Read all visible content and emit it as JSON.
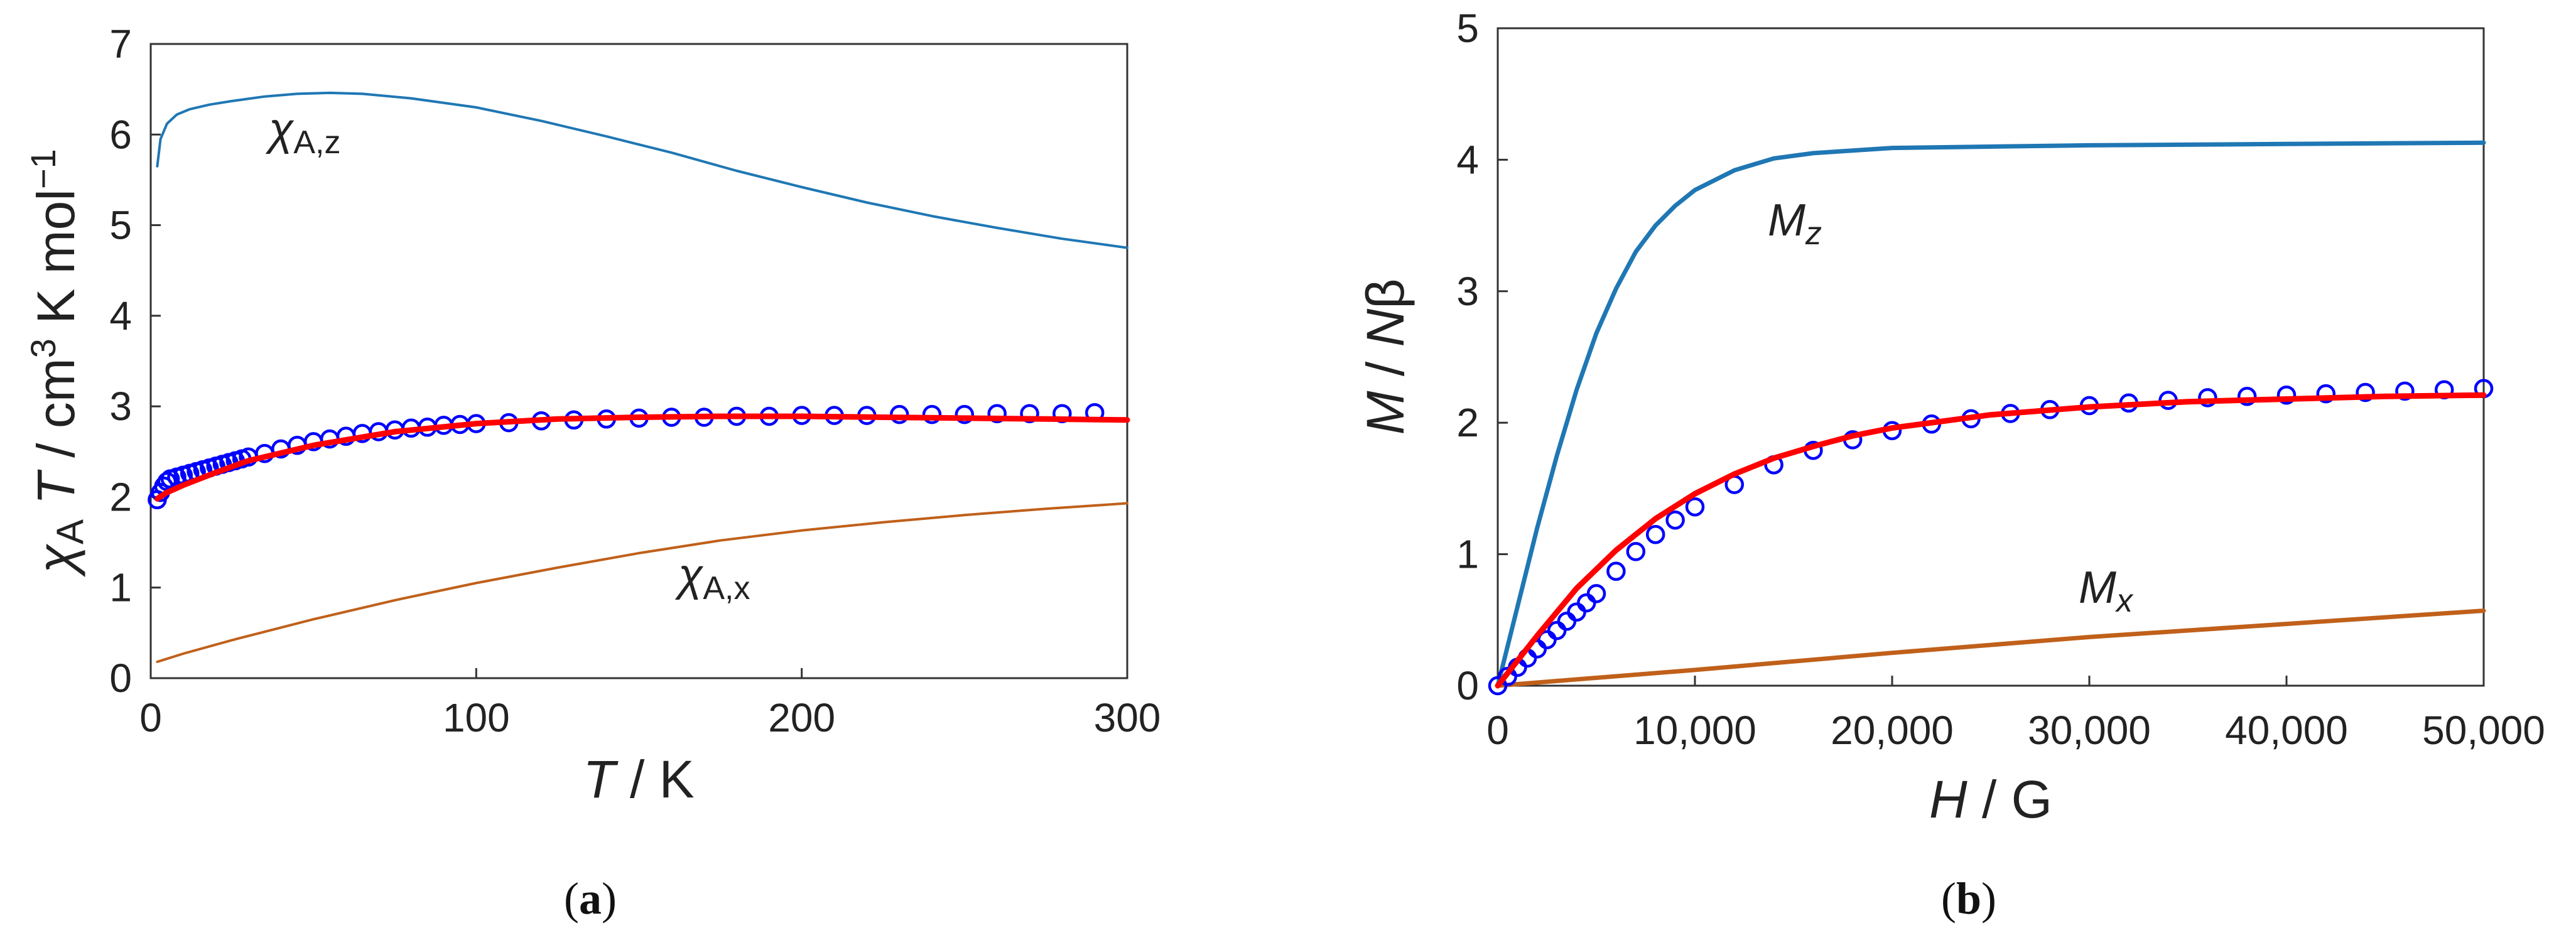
{
  "panels": {
    "a": {
      "caption_open": "(",
      "caption_letter": "a",
      "caption_close": ")"
    },
    "b": {
      "caption_open": "(",
      "caption_letter": "b",
      "caption_close": ")"
    }
  },
  "chart_data": [
    {
      "type": "line",
      "panel": "a",
      "xlabel": {
        "var": "T",
        "unit": " / K"
      },
      "ylabel": {
        "var1": "χ",
        "sub1": "A",
        "var2": " T",
        "unit1": " / cm",
        "sup1": "3",
        "unit2": " K mol",
        "sup2": "−1"
      },
      "xlim": [
        0,
        300
      ],
      "ylim": [
        0,
        7
      ],
      "xticks": [
        "0",
        "100",
        "200",
        "300"
      ],
      "yticks": [
        "0",
        "1",
        "2",
        "3",
        "4",
        "5",
        "6",
        "7"
      ],
      "series": [
        {
          "name": "χA,z",
          "label_var": "χ",
          "label_sub": "A,z",
          "style": "line",
          "color": "#1f77b4",
          "x": [
            2,
            3,
            5,
            8,
            12,
            18,
            25,
            35,
            45,
            55,
            65,
            80,
            100,
            120,
            140,
            160,
            180,
            200,
            220,
            240,
            260,
            280,
            300
          ],
          "y": [
            5.65,
            5.95,
            6.12,
            6.22,
            6.28,
            6.33,
            6.37,
            6.42,
            6.45,
            6.46,
            6.45,
            6.4,
            6.3,
            6.15,
            5.98,
            5.8,
            5.6,
            5.42,
            5.25,
            5.1,
            4.97,
            4.85,
            4.75
          ]
        },
        {
          "name": "χA,x",
          "label_var": "χ",
          "label_sub": "A,x",
          "style": "line",
          "color": "#c0601a",
          "x": [
            2,
            10,
            25,
            50,
            75,
            100,
            125,
            150,
            175,
            200,
            225,
            250,
            275,
            300
          ],
          "y": [
            0.18,
            0.27,
            0.42,
            0.65,
            0.86,
            1.05,
            1.22,
            1.38,
            1.52,
            1.63,
            1.72,
            1.8,
            1.87,
            1.93
          ]
        },
        {
          "name": "experiment",
          "style": "markers",
          "color": "#0000ff",
          "x": [
            2,
            3,
            4,
            5,
            6,
            8,
            10,
            12,
            14,
            16,
            18,
            20,
            22,
            24,
            26,
            28,
            30,
            35,
            40,
            45,
            50,
            55,
            60,
            65,
            70,
            75,
            80,
            85,
            90,
            95,
            100,
            110,
            120,
            130,
            140,
            150,
            160,
            170,
            180,
            190,
            200,
            210,
            220,
            230,
            240,
            250,
            260,
            270,
            280,
            290
          ],
          "y": [
            1.97,
            2.05,
            2.12,
            2.17,
            2.2,
            2.22,
            2.24,
            2.26,
            2.28,
            2.3,
            2.32,
            2.34,
            2.36,
            2.38,
            2.4,
            2.42,
            2.44,
            2.48,
            2.53,
            2.57,
            2.61,
            2.64,
            2.67,
            2.7,
            2.72,
            2.74,
            2.76,
            2.77,
            2.79,
            2.8,
            2.81,
            2.82,
            2.84,
            2.85,
            2.86,
            2.87,
            2.88,
            2.88,
            2.89,
            2.89,
            2.9,
            2.9,
            2.9,
            2.91,
            2.91,
            2.91,
            2.92,
            2.92,
            2.92,
            2.93
          ]
        },
        {
          "name": "fit",
          "style": "line",
          "color": "#ff0000",
          "x": [
            2,
            5,
            10,
            20,
            30,
            50,
            75,
            100,
            125,
            150,
            175,
            200,
            225,
            250,
            275,
            300
          ],
          "y": [
            1.98,
            2.05,
            2.13,
            2.27,
            2.4,
            2.57,
            2.72,
            2.81,
            2.86,
            2.88,
            2.89,
            2.89,
            2.88,
            2.87,
            2.86,
            2.85
          ]
        }
      ]
    },
    {
      "type": "line",
      "panel": "b",
      "xlabel": {
        "var": "H",
        "unit": " / G"
      },
      "ylabel": {
        "var1": "M",
        "mid": " / ",
        "var2": "N",
        "tail": "β"
      },
      "xlim": [
        0,
        50000
      ],
      "ylim": [
        0,
        5
      ],
      "xticks": [
        "0",
        "10,000",
        "20,000",
        "30,000",
        "40,000",
        "50,000"
      ],
      "yticks": [
        "0",
        "1",
        "2",
        "3",
        "4",
        "5"
      ],
      "series": [
        {
          "name": "Mz",
          "label_var": "M",
          "label_sub": "z",
          "style": "line",
          "color": "#1f77b4",
          "x": [
            0,
            1000,
            2000,
            3000,
            4000,
            5000,
            6000,
            7000,
            8000,
            9000,
            10000,
            12000,
            14000,
            16000,
            18000,
            20000,
            25000,
            30000,
            40000,
            50000
          ],
          "y": [
            0,
            0.6,
            1.2,
            1.75,
            2.25,
            2.68,
            3.02,
            3.3,
            3.5,
            3.65,
            3.77,
            3.92,
            4.01,
            4.05,
            4.07,
            4.09,
            4.1,
            4.11,
            4.12,
            4.13
          ]
        },
        {
          "name": "Mx",
          "label_var": "M",
          "label_sub": "x",
          "style": "line",
          "color": "#c0601a",
          "x": [
            0,
            10000,
            20000,
            30000,
            40000,
            50000
          ],
          "y": [
            0,
            0.12,
            0.25,
            0.37,
            0.47,
            0.57
          ]
        },
        {
          "name": "experiment",
          "style": "markers",
          "color": "#0000ff",
          "x": [
            0,
            500,
            1000,
            1500,
            2000,
            2500,
            3000,
            3500,
            4000,
            4500,
            5000,
            6000,
            7000,
            8000,
            9000,
            10000,
            12000,
            14000,
            16000,
            18000,
            20000,
            22000,
            24000,
            26000,
            28000,
            30000,
            32000,
            34000,
            36000,
            38000,
            40000,
            42000,
            44000,
            46000,
            48000,
            50000
          ],
          "y": [
            0,
            0.07,
            0.14,
            0.21,
            0.28,
            0.35,
            0.42,
            0.49,
            0.56,
            0.63,
            0.7,
            0.87,
            1.02,
            1.15,
            1.26,
            1.36,
            1.53,
            1.68,
            1.79,
            1.87,
            1.94,
            1.99,
            2.03,
            2.07,
            2.1,
            2.13,
            2.15,
            2.17,
            2.19,
            2.2,
            2.21,
            2.22,
            2.23,
            2.24,
            2.25,
            2.26
          ]
        },
        {
          "name": "fit",
          "style": "line",
          "color": "#ff0000",
          "x": [
            0,
            2000,
            4000,
            6000,
            8000,
            10000,
            12000,
            14000,
            16000,
            18000,
            20000,
            25000,
            30000,
            35000,
            40000,
            45000,
            50000
          ],
          "y": [
            0,
            0.38,
            0.74,
            1.03,
            1.27,
            1.46,
            1.61,
            1.73,
            1.82,
            1.9,
            1.96,
            2.06,
            2.12,
            2.16,
            2.18,
            2.2,
            2.21
          ]
        }
      ]
    }
  ]
}
